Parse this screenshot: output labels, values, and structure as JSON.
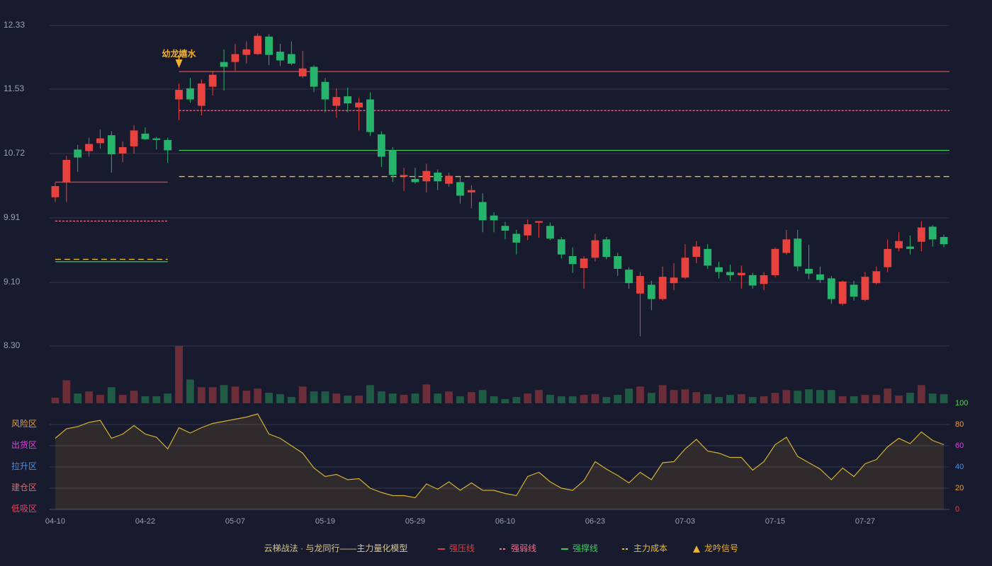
{
  "chart_data": [
    {
      "type": "candlestick",
      "legend_title": "云梯战法 · 与龙同行——主力量化模型",
      "ylim": [
        8.3,
        12.33
      ],
      "yticks": [
        {
          "value": 8.3,
          "label": "8.30"
        },
        {
          "value": 9.1,
          "label": "9.10"
        },
        9.91,
        10.72,
        11.53,
        12.33
      ],
      "grid": true,
      "up_color": "#e8423f",
      "down_color": "#26b36b",
      "open": [
        10.17,
        10.36,
        10.77,
        10.75,
        10.85,
        10.95,
        10.72,
        10.81,
        10.97,
        10.91,
        10.89,
        11.4,
        11.54,
        11.32,
        11.56,
        11.87,
        11.87,
        11.96,
        11.97,
        12.19,
        12.0,
        11.97,
        11.69,
        11.81,
        11.62,
        11.32,
        11.44,
        11.3,
        11.4,
        10.96,
        10.76,
        10.43,
        10.4,
        10.37,
        10.48,
        10.34,
        10.36,
        10.23,
        10.11,
        9.94,
        9.81,
        9.71,
        9.69,
        9.85,
        9.81,
        9.64,
        9.43,
        9.28,
        9.41,
        9.64,
        9.43,
        9.26,
        8.96,
        9.07,
        8.89,
        9.09,
        9.16,
        9.42,
        9.52,
        9.29,
        9.23,
        9.19,
        9.19,
        9.08,
        9.19,
        9.47,
        9.65,
        9.27,
        9.2,
        9.15,
        8.83,
        9.07,
        8.88,
        9.09,
        9.29,
        9.53,
        9.55,
        9.61,
        9.8,
        9.67
      ],
      "high": [
        10.36,
        10.69,
        10.83,
        10.92,
        11.02,
        11.0,
        10.87,
        11.08,
        11.05,
        10.93,
        10.92,
        11.6,
        11.67,
        11.65,
        11.76,
        12.03,
        12.1,
        12.13,
        12.23,
        12.22,
        12.1,
        12.13,
        12.01,
        11.83,
        11.67,
        11.54,
        11.55,
        11.42,
        11.49,
        11.0,
        10.8,
        10.54,
        10.54,
        10.59,
        10.52,
        10.48,
        10.43,
        10.32,
        10.22,
        9.98,
        9.86,
        9.76,
        9.89,
        9.87,
        9.85,
        9.67,
        9.54,
        9.43,
        9.71,
        9.67,
        9.47,
        9.29,
        9.23,
        9.12,
        9.3,
        9.34,
        9.58,
        9.62,
        9.58,
        9.36,
        9.32,
        9.31,
        9.22,
        9.23,
        9.54,
        9.76,
        9.76,
        9.57,
        9.3,
        9.18,
        9.12,
        9.12,
        9.23,
        9.3,
        9.64,
        9.73,
        9.69,
        9.87,
        9.82,
        9.7
      ],
      "low": [
        10.11,
        10.11,
        10.49,
        10.68,
        10.78,
        10.48,
        10.61,
        10.72,
        10.89,
        10.77,
        10.6,
        11.14,
        11.36,
        11.2,
        11.45,
        11.51,
        11.76,
        11.85,
        11.96,
        11.83,
        11.82,
        11.83,
        11.67,
        11.49,
        11.24,
        11.17,
        11.24,
        11.01,
        10.94,
        10.55,
        10.36,
        10.25,
        10.34,
        10.23,
        10.26,
        10.3,
        10.09,
        10.03,
        9.73,
        9.73,
        9.64,
        9.45,
        9.63,
        9.66,
        9.63,
        9.4,
        9.22,
        9.02,
        9.36,
        9.39,
        9.18,
        9.02,
        8.42,
        8.75,
        8.87,
        9.0,
        9.14,
        9.34,
        9.27,
        9.15,
        9.12,
        9.02,
        9.02,
        9.0,
        9.16,
        9.45,
        9.24,
        9.14,
        9.09,
        8.83,
        8.81,
        8.87,
        8.86,
        9.07,
        9.23,
        9.49,
        9.45,
        9.49,
        9.55,
        9.54
      ],
      "close": [
        10.31,
        10.64,
        10.67,
        10.84,
        10.91,
        10.71,
        10.8,
        11.01,
        10.9,
        10.89,
        10.76,
        11.52,
        11.4,
        11.6,
        11.71,
        11.81,
        11.97,
        12.03,
        12.2,
        11.96,
        11.89,
        11.85,
        11.79,
        11.56,
        11.4,
        11.43,
        11.35,
        11.36,
        10.99,
        10.68,
        10.45,
        10.45,
        10.36,
        10.5,
        10.37,
        10.44,
        10.19,
        10.26,
        9.88,
        9.88,
        9.75,
        9.6,
        9.83,
        9.87,
        9.65,
        9.45,
        9.33,
        9.4,
        9.63,
        9.42,
        9.27,
        9.09,
        9.18,
        8.89,
        9.17,
        9.16,
        9.41,
        9.55,
        9.31,
        9.23,
        9.19,
        9.22,
        9.06,
        9.19,
        9.52,
        9.64,
        9.3,
        9.21,
        9.13,
        8.89,
        9.11,
        8.92,
        9.17,
        9.24,
        9.52,
        9.62,
        9.52,
        9.79,
        9.64,
        9.58
      ],
      "levels": [
        {
          "name": "强压线",
          "color": "#d94040",
          "dash": "none",
          "segments": [
            {
              "from": 0,
              "to": 10,
              "value": 10.36
            },
            {
              "from": 11,
              "to": 79,
              "value": 11.75
            }
          ]
        },
        {
          "name": "强弱线",
          "color": "#f07090",
          "dash": "3,2",
          "segments": [
            {
              "from": 0,
              "to": 10,
              "value": 9.87
            },
            {
              "from": 11,
              "to": 79,
              "value": 11.26
            }
          ]
        },
        {
          "name": "强撑线",
          "color": "#40c860",
          "dash": "none",
          "segments": [
            {
              "from": 0,
              "to": 10,
              "value": 9.36
            },
            {
              "from": 11,
              "to": 79,
              "value": 10.76
            }
          ]
        },
        {
          "name": "主力成本",
          "color": "#e8c020",
          "dash": "8,5",
          "segments": [
            {
              "from": 0,
              "to": 10,
              "value": 9.39
            },
            {
              "from": 11,
              "to": 79,
              "value": 10.43
            }
          ]
        }
      ],
      "signals": {
        "name": "龙吟信号",
        "color": "#f0b030",
        "points": [
          {
            "index": 11,
            "label": "幼龙嬉水"
          }
        ]
      }
    },
    {
      "type": "bar",
      "ylim": [
        0,
        82
      ],
      "up_color": "#6b2d38",
      "down_color": "#1f5a45",
      "values": [
        8,
        33,
        14,
        17,
        12,
        23,
        12,
        18,
        10,
        10,
        14,
        82,
        34,
        23,
        23,
        26,
        24,
        18,
        21,
        15,
        13,
        9,
        24,
        17,
        17,
        14,
        11,
        11,
        26,
        17,
        14,
        12,
        14,
        27,
        14,
        17,
        10,
        16,
        19,
        10,
        6,
        9,
        14,
        19,
        12,
        10,
        10,
        12,
        13,
        9,
        12,
        21,
        24,
        15,
        26,
        19,
        20,
        16,
        13,
        9,
        12,
        13,
        9,
        10,
        15,
        19,
        18,
        20,
        19,
        19,
        10,
        10,
        12,
        12,
        21,
        11,
        15,
        26,
        14,
        13
      ]
    },
    {
      "type": "line",
      "categories": [
        "04-10",
        null,
        null,
        null,
        null,
        null,
        null,
        null,
        "04-22",
        null,
        null,
        null,
        null,
        null,
        null,
        null,
        "05-07",
        null,
        null,
        null,
        null,
        null,
        null,
        null,
        "05-19",
        null,
        null,
        null,
        null,
        null,
        null,
        null,
        "05-29",
        null,
        null,
        null,
        null,
        null,
        null,
        null,
        "06-10",
        null,
        null,
        null,
        null,
        null,
        null,
        null,
        "06-23",
        null,
        null,
        null,
        null,
        null,
        null,
        null,
        "07-03",
        null,
        null,
        null,
        null,
        null,
        null,
        null,
        "07-15",
        null,
        null,
        null,
        null,
        null,
        null,
        null,
        "07-27",
        null,
        null,
        null,
        null,
        null,
        null,
        null
      ],
      "values": [
        67,
        76,
        78,
        82,
        84,
        67,
        71,
        79,
        71,
        68,
        57,
        77,
        72,
        77,
        81,
        83,
        85,
        87,
        90,
        71,
        67,
        60,
        53,
        39,
        31,
        33,
        28,
        29,
        20,
        16,
        13,
        13,
        11,
        24,
        19,
        26,
        18,
        25,
        18,
        18,
        15,
        13,
        31,
        35,
        26,
        20,
        18,
        27,
        45,
        38,
        32,
        25,
        35,
        28,
        44,
        45,
        57,
        66,
        55,
        53,
        49,
        49,
        37,
        45,
        61,
        68,
        50,
        44,
        38,
        28,
        39,
        31,
        43,
        47,
        59,
        67,
        62,
        73,
        65,
        61
      ],
      "color": "#d4b030",
      "ylim": [
        0,
        100
      ],
      "yticks": [
        {
          "value": 0,
          "label": "低吸区"
        },
        {
          "value": 20,
          "label": "建仓区"
        },
        {
          "value": 40,
          "label": "拉升区"
        },
        {
          "value": 60,
          "label": "出货区"
        },
        {
          "value": 80,
          "label": "风险区"
        }
      ],
      "ytick_colors": [
        "#f04060",
        "#f06060",
        "#4a90e2",
        "#e040e0",
        "#f0a030"
      ],
      "y2lim": [
        0,
        100
      ],
      "y2ticks": [
        0,
        20,
        40,
        60,
        80,
        100
      ],
      "y2tick_colors": [
        "#f04040",
        "#f0a030",
        "#4a90e2",
        "#e040e0",
        "#f0a030",
        "#40e040"
      ],
      "grid": true
    }
  ]
}
